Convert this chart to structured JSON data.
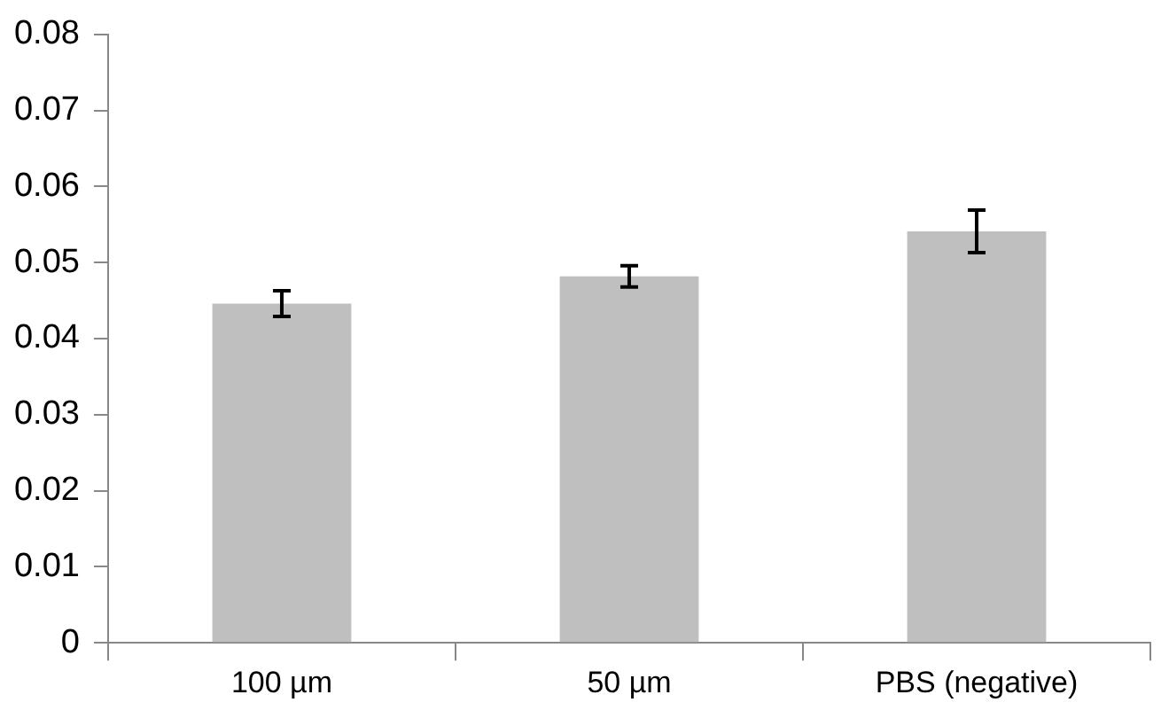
{
  "chart_data": {
    "type": "bar",
    "categories": [
      "100 µm",
      "50 µm",
      "PBS (negative)"
    ],
    "values": [
      0.0446,
      0.0482,
      0.0541
    ],
    "errors": [
      0.0017,
      0.0014,
      0.0028
    ],
    "color": "#bfbfbf",
    "ylim": [
      0,
      0.08
    ],
    "yticks": [
      0,
      0.01,
      0.02,
      0.03,
      0.04,
      0.05,
      0.06,
      0.07,
      0.08
    ],
    "grid": false,
    "legend": false
  }
}
